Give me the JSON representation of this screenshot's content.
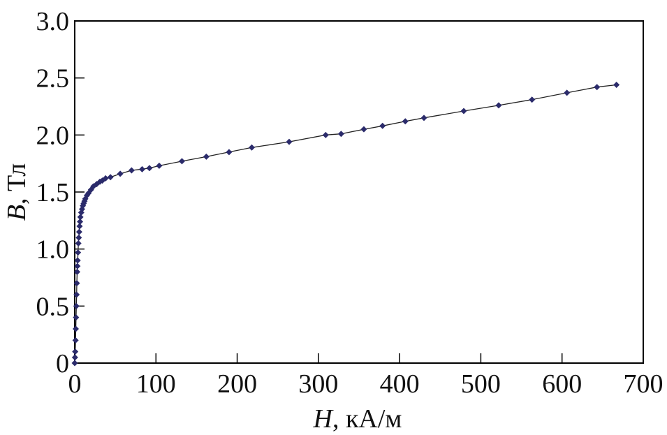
{
  "chart_data": {
    "type": "line",
    "title": "",
    "xlabel_italic": "H",
    "xlabel_rest": ", кА/м",
    "ylabel_italic": "B",
    "ylabel_rest": ", Тл",
    "xlim": [
      0,
      700
    ],
    "ylim": [
      0,
      3.0
    ],
    "xticks": [
      0,
      100,
      200,
      300,
      400,
      500,
      600,
      700
    ],
    "xtick_labels": [
      "0",
      "100",
      "200",
      "300",
      "400",
      "500",
      "600",
      "700"
    ],
    "yticks": [
      0,
      0.5,
      1.0,
      1.5,
      2.0,
      2.5,
      3.0
    ],
    "ytick_labels": [
      "0",
      "0.5",
      "1.0",
      "1.5",
      "2.0",
      "2.5",
      "3.0"
    ],
    "grid": false,
    "marker": "diamond",
    "colors": {
      "series": "#2b2b6b",
      "line": "#222222",
      "axis": "#000000"
    },
    "series": [
      {
        "x": [
          0,
          0.3,
          0.6,
          1,
          1.3,
          1.6,
          2,
          2.3,
          2.6,
          3,
          3.3,
          3.6,
          4,
          4.5,
          5,
          5.5,
          6,
          6.5,
          7,
          8,
          9,
          10,
          11,
          12,
          13,
          15,
          17,
          20,
          23,
          27,
          31,
          34,
          38,
          44,
          56,
          70,
          83,
          92,
          104,
          132,
          162,
          190,
          218,
          264,
          309,
          328,
          356,
          379,
          407,
          430,
          479,
          522,
          563,
          606,
          643,
          667
        ],
        "y": [
          0,
          0.05,
          0.1,
          0.2,
          0.3,
          0.4,
          0.5,
          0.6,
          0.7,
          0.8,
          0.85,
          0.9,
          0.97,
          1.05,
          1.1,
          1.15,
          1.2,
          1.24,
          1.28,
          1.32,
          1.35,
          1.38,
          1.4,
          1.42,
          1.44,
          1.47,
          1.49,
          1.52,
          1.55,
          1.57,
          1.59,
          1.6,
          1.62,
          1.63,
          1.66,
          1.69,
          1.7,
          1.71,
          1.73,
          1.77,
          1.81,
          1.85,
          1.89,
          1.94,
          2.0,
          2.01,
          2.05,
          2.08,
          2.12,
          2.15,
          2.21,
          2.26,
          2.31,
          2.37,
          2.42,
          2.44
        ]
      }
    ]
  }
}
